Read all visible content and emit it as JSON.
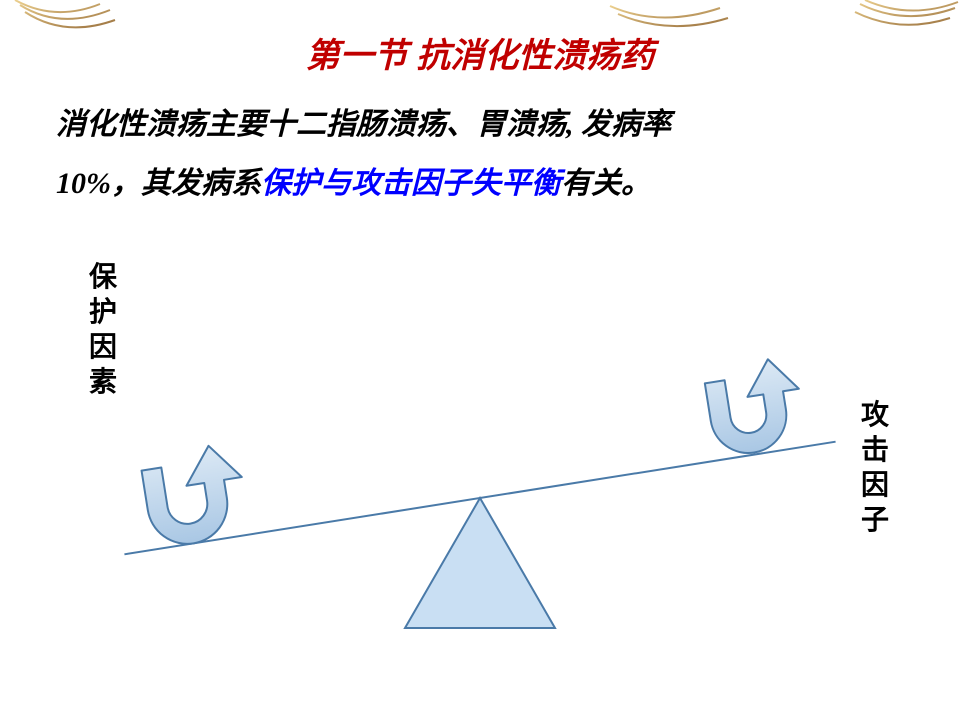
{
  "title": "第一节 抗消化性溃疡药",
  "body": {
    "line1": "消化性溃疡主要十二指肠溃疡、胃溃疡, 发病率",
    "line2a": " 10%，其发病系",
    "line2b": "保护与攻击因子失平衡",
    "line2c": "有关。"
  },
  "diagram": {
    "type": "infographic",
    "concept": "seesaw-balance",
    "left_label": "保护因素",
    "right_label": "攻击因子",
    "tilt_deg": -9,
    "beam": {
      "length": 720,
      "stroke": "#4a7aa8",
      "stroke_width": 2
    },
    "fulcrum": {
      "type": "triangle",
      "width": 150,
      "height": 130,
      "fill": "#c9dff3",
      "stroke": "#4a7aa8",
      "stroke_width": 2
    },
    "arrow_shape": {
      "fill_light": "#dce9f5",
      "fill_mid": "#a9c7e4",
      "stroke": "#4a7aa8",
      "stroke_width": 2
    },
    "label_fontsize": 28,
    "label_color": "#000000",
    "background": "#ffffff"
  },
  "colors": {
    "title": "#c00000",
    "highlight": "#0000ff",
    "text": "#000000",
    "shape_fill": "#c9dff3",
    "shape_stroke": "#4a7aa8"
  },
  "decor": {
    "wheat_color_a": "#d9a441",
    "wheat_color_b": "#8a5a1e"
  }
}
